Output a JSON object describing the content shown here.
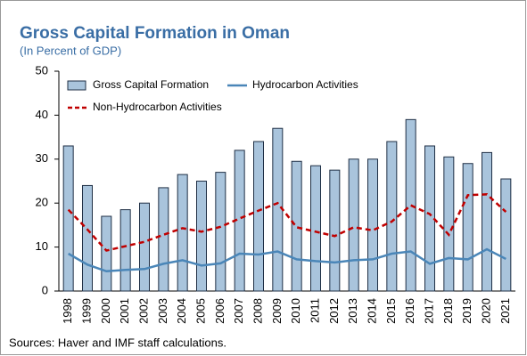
{
  "chart_data": {
    "type": "bar_line",
    "title": "Gross Capital Formation in Oman",
    "subtitle": "(In Percent of GDP)",
    "source": "Sources: Haver and IMF staff calculations.",
    "categories": [
      "1998",
      "1999",
      "2000",
      "2001",
      "2002",
      "2003",
      "2004",
      "2005",
      "2006",
      "2007",
      "2008",
      "2009",
      "2010",
      "2011",
      "2012",
      "2013",
      "2014",
      "2015",
      "2016",
      "2017",
      "2018",
      "2019",
      "2020",
      "2021"
    ],
    "series": [
      {
        "name": "Gross Capital Formation",
        "kind": "bar",
        "color": "#a9c4dc",
        "values": [
          33,
          24,
          17,
          18.5,
          20,
          23.5,
          26.5,
          25,
          27,
          32,
          34,
          37,
          29.5,
          28.5,
          27.5,
          30,
          30,
          34,
          39,
          33,
          30.5,
          29,
          31.5,
          25.5
        ]
      },
      {
        "name": "Hydrocarbon Activities",
        "kind": "line",
        "color": "#4a86b8",
        "values": [
          8.5,
          6,
          4.5,
          4.8,
          5,
          6.2,
          7,
          5.8,
          6.3,
          8.5,
          8.3,
          9,
          7.2,
          6.8,
          6.5,
          7,
          7.2,
          8.5,
          9,
          6.2,
          7.5,
          7.2,
          9.5,
          7.3
        ]
      },
      {
        "name": "Non-Hydrocarbon Activities",
        "kind": "dashed-line",
        "color": "#c00000",
        "values": [
          18.5,
          14,
          9.2,
          10.2,
          11.2,
          12.8,
          14.3,
          13.5,
          14.6,
          16.5,
          18.3,
          20,
          14.5,
          13.5,
          12.5,
          14.5,
          13.8,
          15.8,
          19.5,
          17.5,
          12.8,
          21.8,
          22,
          18
        ]
      }
    ],
    "ylim": [
      0,
      50
    ],
    "yticks": [
      0,
      10,
      20,
      30,
      40,
      50
    ]
  }
}
